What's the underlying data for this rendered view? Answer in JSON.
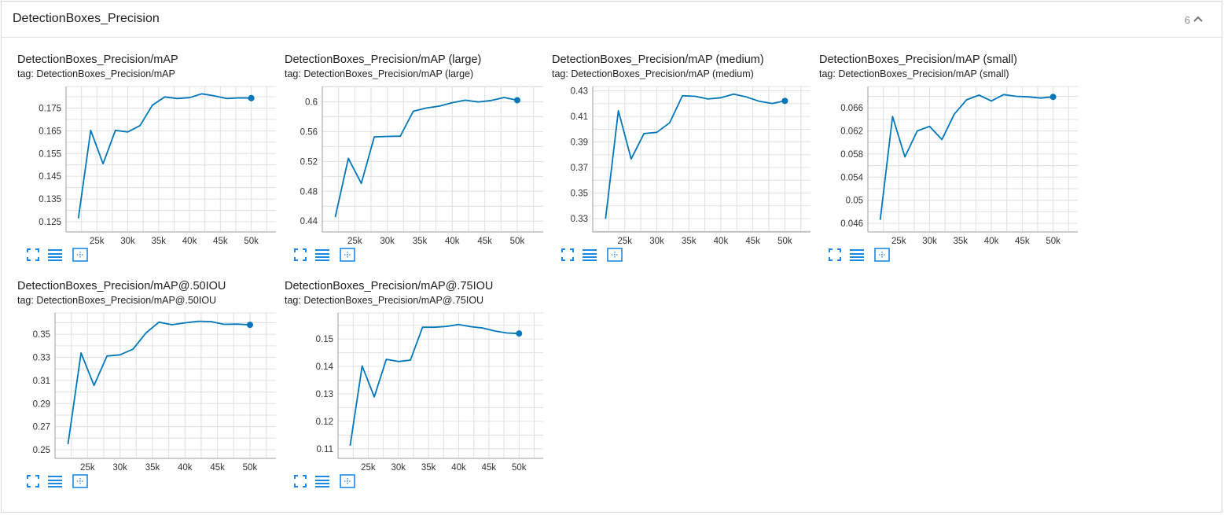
{
  "panel": {
    "title": "DetectionBoxes_Precision",
    "count": "6"
  },
  "colors": {
    "line": "#0077bb",
    "grid": "#e0e0e0",
    "icon": "#1e88e5"
  },
  "icons": [
    "fullscreen-icon",
    "data-table-icon",
    "fit-domain-icon"
  ],
  "chart_data": [
    {
      "type": "line",
      "title": "DetectionBoxes_Precision/mAP",
      "tag": "tag: DetectionBoxes_Precision/mAP",
      "x": [
        22000,
        24000,
        26000,
        28000,
        30000,
        32000,
        34000,
        36000,
        38000,
        40000,
        42000,
        44000,
        46000,
        48000,
        50000
      ],
      "y": [
        0.1265,
        0.1652,
        0.1505,
        0.1652,
        0.1645,
        0.1673,
        0.1763,
        0.1799,
        0.1792,
        0.1796,
        0.1813,
        0.1804,
        0.1792,
        0.1795,
        0.1794
      ],
      "xlim": [
        20000,
        54000
      ],
      "ylim": [
        0.1205,
        0.1845
      ],
      "xticks": [
        25000,
        30000,
        35000,
        40000,
        45000,
        50000
      ],
      "xtick_labels": [
        "25k",
        "30k",
        "35k",
        "40k",
        "45k",
        "50k"
      ],
      "yticks": [
        0.125,
        0.135,
        0.145,
        0.155,
        0.165,
        0.175
      ],
      "ytick_labels": [
        "0.125",
        "0.135",
        "0.145",
        "0.155",
        "0.165",
        "0.175"
      ],
      "grid": true
    },
    {
      "type": "line",
      "title": "DetectionBoxes_Precision/mAP (large)",
      "tag": "tag: DetectionBoxes_Precision/mAP (large)",
      "x": [
        22000,
        24000,
        26000,
        28000,
        30000,
        32000,
        34000,
        36000,
        38000,
        40000,
        42000,
        44000,
        46000,
        48000,
        50000
      ],
      "y": [
        0.4455,
        0.5242,
        0.4906,
        0.5529,
        0.5536,
        0.5539,
        0.5873,
        0.5916,
        0.5942,
        0.5988,
        0.6022,
        0.5997,
        0.6017,
        0.6057,
        0.6021
      ],
      "xlim": [
        20000,
        54000
      ],
      "ylim": [
        0.4255,
        0.6205
      ],
      "xticks": [
        25000,
        30000,
        35000,
        40000,
        45000,
        50000
      ],
      "xtick_labels": [
        "25k",
        "30k",
        "35k",
        "40k",
        "45k",
        "50k"
      ],
      "yticks": [
        0.44,
        0.48,
        0.52,
        0.56,
        0.6
      ],
      "ytick_labels": [
        "0.44",
        "0.48",
        "0.52",
        "0.56",
        "0.6"
      ],
      "grid": true
    },
    {
      "type": "line",
      "title": "DetectionBoxes_Precision/mAP (medium)",
      "tag": "tag: DetectionBoxes_Precision/mAP (medium)",
      "x": [
        22000,
        24000,
        26000,
        28000,
        30000,
        32000,
        34000,
        36000,
        38000,
        40000,
        42000,
        44000,
        46000,
        48000,
        50000
      ],
      "y": [
        0.3298,
        0.4145,
        0.3767,
        0.3966,
        0.3976,
        0.405,
        0.4262,
        0.4258,
        0.4237,
        0.4247,
        0.4275,
        0.4253,
        0.4219,
        0.4202,
        0.4222
      ],
      "xlim": [
        20000,
        54000
      ],
      "ylim": [
        0.3195,
        0.4335
      ],
      "xticks": [
        25000,
        30000,
        35000,
        40000,
        45000,
        50000
      ],
      "xtick_labels": [
        "25k",
        "30k",
        "35k",
        "40k",
        "45k",
        "50k"
      ],
      "yticks": [
        0.33,
        0.35,
        0.37,
        0.39,
        0.41,
        0.43
      ],
      "ytick_labels": [
        "0.33",
        "0.35",
        "0.37",
        "0.39",
        "0.41",
        "0.43"
      ],
      "grid": true
    },
    {
      "type": "line",
      "title": "DetectionBoxes_Precision/mAP (small)",
      "tag": "tag: DetectionBoxes_Precision/mAP (small)",
      "x": [
        22000,
        24000,
        26000,
        28000,
        30000,
        32000,
        34000,
        36000,
        38000,
        40000,
        42000,
        44000,
        46000,
        48000,
        50000
      ],
      "y": [
        0.0466,
        0.0645,
        0.0575,
        0.062,
        0.0628,
        0.0605,
        0.0649,
        0.0674,
        0.0682,
        0.0672,
        0.0683,
        0.068,
        0.0679,
        0.0677,
        0.0679
      ],
      "xlim": [
        20000,
        54000
      ],
      "ylim": [
        0.0445,
        0.0697
      ],
      "xticks": [
        25000,
        30000,
        35000,
        40000,
        45000,
        50000
      ],
      "xtick_labels": [
        "25k",
        "30k",
        "35k",
        "40k",
        "45k",
        "50k"
      ],
      "yticks": [
        0.046,
        0.05,
        0.054,
        0.058,
        0.062,
        0.066
      ],
      "ytick_labels": [
        "0.046",
        "0.05",
        "0.054",
        "0.058",
        "0.062",
        "0.066"
      ],
      "grid": true
    },
    {
      "type": "line",
      "title": "DetectionBoxes_Precision/mAP@.50IOU",
      "tag": "tag: DetectionBoxes_Precision/mAP@.50IOU",
      "x": [
        22000,
        24000,
        26000,
        28000,
        30000,
        32000,
        34000,
        36000,
        38000,
        40000,
        42000,
        44000,
        46000,
        48000,
        50000
      ],
      "y": [
        0.2548,
        0.3338,
        0.3057,
        0.3312,
        0.3322,
        0.3371,
        0.3512,
        0.3605,
        0.3583,
        0.3599,
        0.3613,
        0.361,
        0.3586,
        0.3588,
        0.3582
      ],
      "xlim": [
        20000,
        54000
      ],
      "ylim": [
        0.2425,
        0.3685
      ],
      "xticks": [
        25000,
        30000,
        35000,
        40000,
        45000,
        50000
      ],
      "xtick_labels": [
        "25k",
        "30k",
        "35k",
        "40k",
        "45k",
        "50k"
      ],
      "yticks": [
        0.25,
        0.27,
        0.29,
        0.31,
        0.33,
        0.35
      ],
      "ytick_labels": [
        "0.25",
        "0.27",
        "0.29",
        "0.31",
        "0.33",
        "0.35"
      ],
      "grid": true
    },
    {
      "type": "line",
      "title": "DetectionBoxes_Precision/mAP@.75IOU",
      "tag": "tag: DetectionBoxes_Precision/mAP@.75IOU",
      "x": [
        22000,
        24000,
        26000,
        28000,
        30000,
        32000,
        34000,
        36000,
        38000,
        40000,
        42000,
        44000,
        46000,
        48000,
        50000
      ],
      "y": [
        0.1111,
        0.1402,
        0.1289,
        0.1426,
        0.1418,
        0.1423,
        0.1543,
        0.1543,
        0.1546,
        0.1553,
        0.1545,
        0.154,
        0.1529,
        0.1522,
        0.152
      ],
      "xlim": [
        20000,
        54000
      ],
      "ylim": [
        0.1065,
        0.1595
      ],
      "xticks": [
        25000,
        30000,
        35000,
        40000,
        45000,
        50000
      ],
      "xtick_labels": [
        "25k",
        "30k",
        "35k",
        "40k",
        "45k",
        "50k"
      ],
      "yticks": [
        0.11,
        0.12,
        0.13,
        0.14,
        0.15
      ],
      "ytick_labels": [
        "0.11",
        "0.12",
        "0.13",
        "0.14",
        "0.15"
      ],
      "grid": true
    }
  ]
}
